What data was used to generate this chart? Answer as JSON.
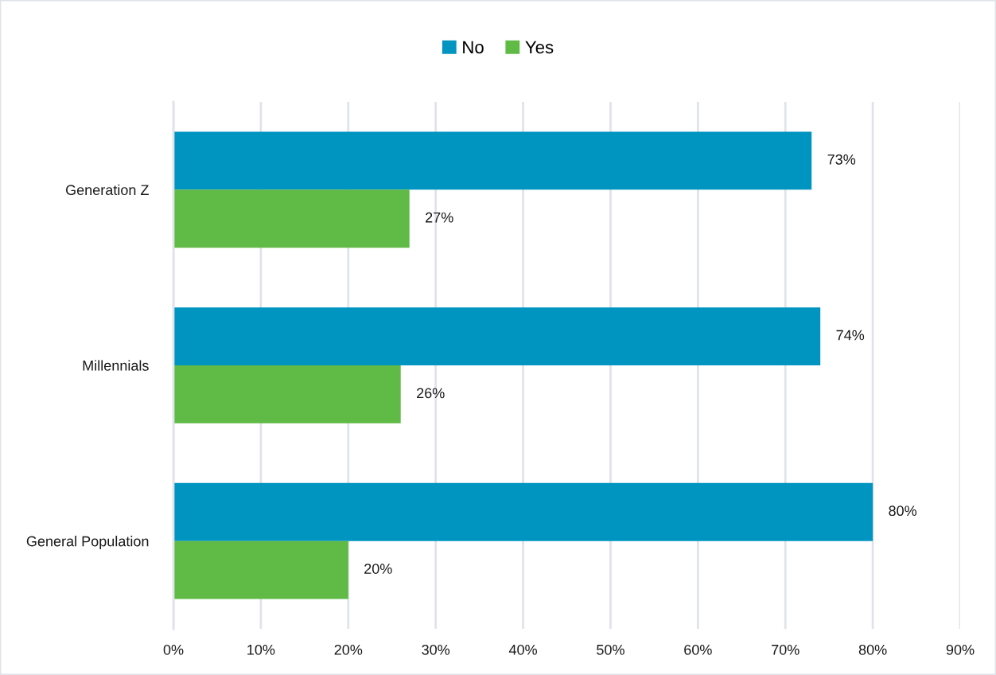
{
  "chart_data": {
    "type": "bar",
    "orientation": "horizontal",
    "categories": [
      "Generation Z",
      "Millennials",
      "General Population"
    ],
    "series": [
      {
        "name": "No",
        "color": "#0094c0",
        "values": [
          73,
          74,
          80
        ],
        "value_labels": [
          "73%",
          "74%",
          "80%"
        ]
      },
      {
        "name": "Yes",
        "color": "#5fba46",
        "values": [
          27,
          26,
          20
        ],
        "value_labels": [
          "27%",
          "26%",
          "20%"
        ]
      }
    ],
    "xlim": [
      0,
      90
    ],
    "xticks": [
      {
        "value": 0,
        "label": "0%"
      },
      {
        "value": 10,
        "label": "10%"
      },
      {
        "value": 20,
        "label": "20%"
      },
      {
        "value": 30,
        "label": "30%"
      },
      {
        "value": 40,
        "label": "40%"
      },
      {
        "value": 50,
        "label": "50%"
      },
      {
        "value": 60,
        "label": "60%"
      },
      {
        "value": 70,
        "label": "70%"
      },
      {
        "value": 80,
        "label": "80%"
      },
      {
        "value": 90,
        "label": "90%"
      }
    ],
    "grid": "x",
    "legend": "top"
  }
}
